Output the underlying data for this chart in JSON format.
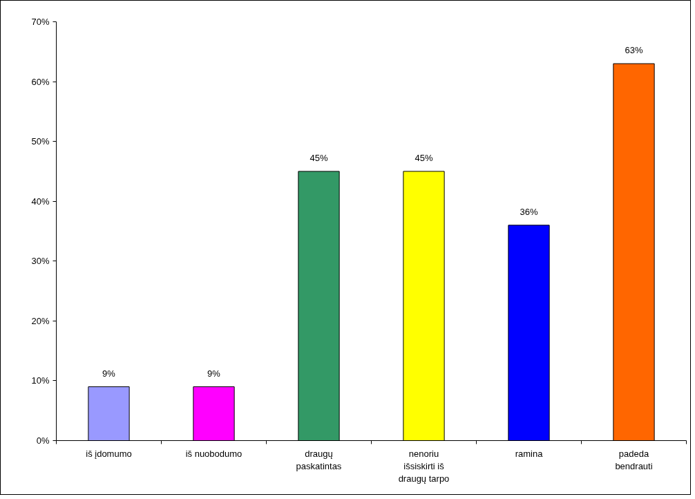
{
  "chart_data": {
    "type": "bar",
    "categories": [
      "iš įdomumo",
      "iš nuobodumo",
      "draugų paskatintas",
      "nenoriu išsiskirti iš draugų tarpo",
      "ramina",
      "padeda bendrauti"
    ],
    "values": [
      9,
      9,
      45,
      45,
      36,
      63
    ],
    "colors": [
      "#9999ff",
      "#ff00ff",
      "#339966",
      "#ffff00",
      "#0000ff",
      "#ff6600"
    ],
    "value_labels": [
      "9%",
      "9%",
      "45%",
      "45%",
      "36%",
      "63%"
    ],
    "ylim": [
      0,
      70
    ],
    "yticks": [
      {
        "value": 0,
        "label": "0%"
      },
      {
        "value": 10,
        "label": "10%"
      },
      {
        "value": 20,
        "label": "20%"
      },
      {
        "value": 30,
        "label": "30%"
      },
      {
        "value": 40,
        "label": "40%"
      },
      {
        "value": 50,
        "label": "50%"
      },
      {
        "value": 60,
        "label": "60%"
      },
      {
        "value": 70,
        "label": "70%"
      }
    ],
    "grid": false
  }
}
